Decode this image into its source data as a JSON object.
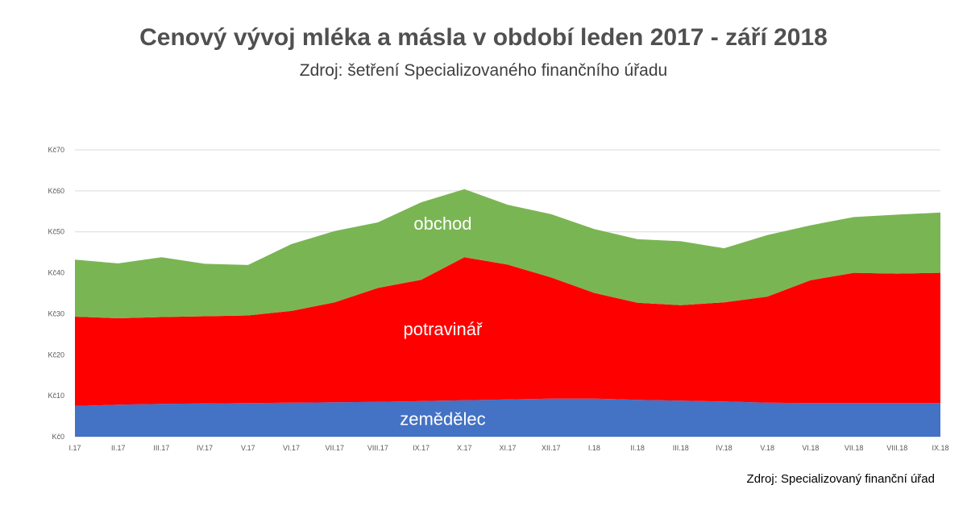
{
  "chart_data": {
    "type": "area",
    "stacked": true,
    "title": "Cenový vývoj mléka a másla v období leden 2017 - září 2018",
    "subtitle": "Zdroj: šetření Specializovaného finančního úřadu",
    "source_note": "Zdroj: Specializovaný finanční úřad",
    "categories": [
      "I.17",
      "II.17",
      "III.17",
      "IV.17",
      "V.17",
      "VI.17",
      "VII.17",
      "VIII.17",
      "IX.17",
      "X.17",
      "XI.17",
      "XII.17",
      "I.18",
      "II.18",
      "III.18",
      "IV.18",
      "V.18",
      "VI.18",
      "VII.18",
      "VIII.18",
      "IX.18"
    ],
    "yticks": [
      "Kč0",
      "Kč10",
      "Kč20",
      "Kč30",
      "Kč40",
      "Kč50",
      "Kč60",
      "Kč70"
    ],
    "ylim": [
      0,
      70
    ],
    "grid": true,
    "series": [
      {
        "name": "zemědělec",
        "color": "#4472C4",
        "values": [
          7.5,
          7.8,
          8.0,
          8.1,
          8.2,
          8.3,
          8.4,
          8.5,
          8.7,
          8.9,
          9.1,
          9.3,
          9.3,
          9.0,
          8.8,
          8.6,
          8.3,
          8.2,
          8.2,
          8.2,
          8.2
        ]
      },
      {
        "name": "potravinář",
        "color": "#FF0000",
        "values": [
          21.8,
          21.1,
          21.2,
          21.3,
          21.4,
          22.4,
          24.4,
          27.8,
          29.6,
          34.9,
          32.9,
          29.6,
          25.8,
          23.7,
          23.3,
          24.2,
          25.9,
          30.0,
          31.8,
          31.6,
          31.8
        ]
      },
      {
        "name": "obchod",
        "color": "#7AB554",
        "values": [
          13.9,
          13.4,
          14.6,
          12.8,
          12.3,
          16.3,
          17.4,
          16.0,
          18.9,
          16.6,
          14.6,
          15.4,
          15.6,
          15.5,
          15.6,
          13.2,
          15.0,
          13.4,
          13.6,
          14.4,
          14.7
        ]
      }
    ]
  }
}
